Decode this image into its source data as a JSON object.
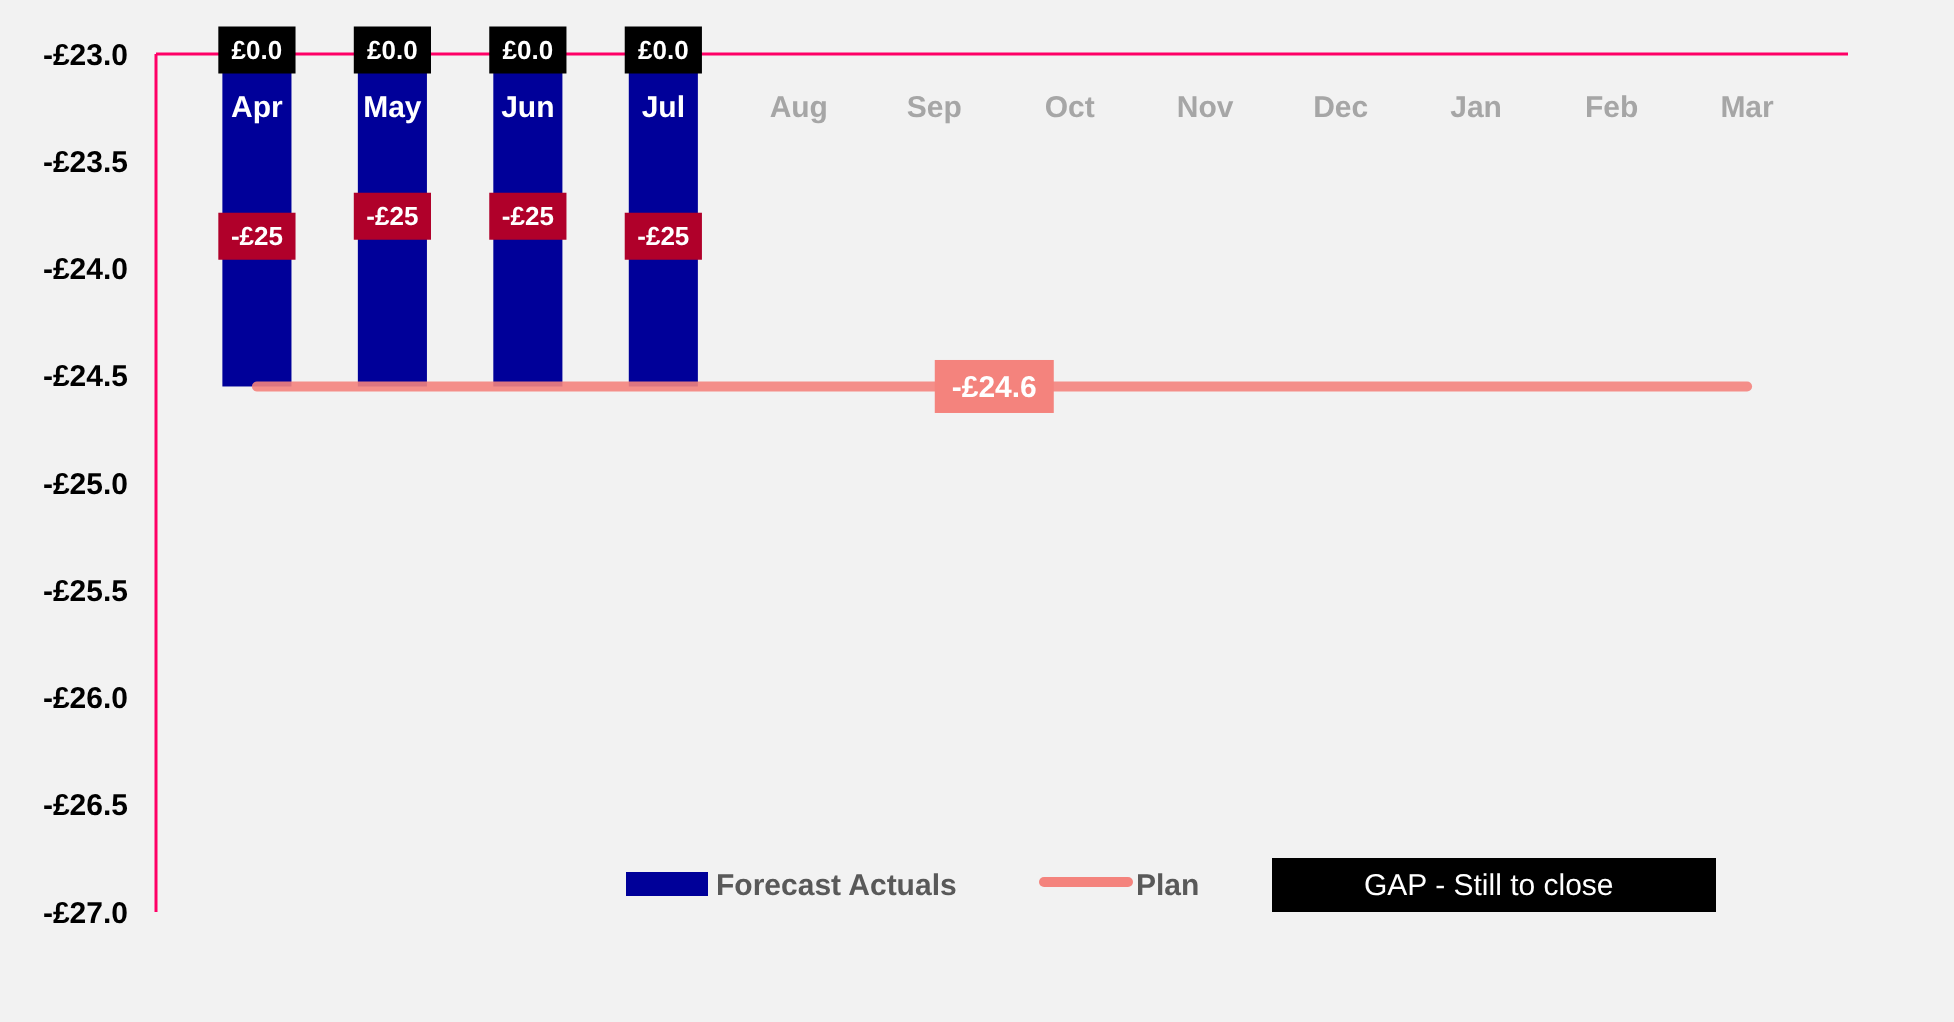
{
  "chart_data": {
    "type": "bar",
    "categories": [
      "Apr",
      "May",
      "Jun",
      "Jul",
      "Aug",
      "Sep",
      "Oct",
      "Nov",
      "Dec",
      "Jan",
      "Feb",
      "Mar"
    ],
    "series": [
      {
        "name": "Forecast Actuals",
        "color": "#000099",
        "values": [
          -24.55,
          -24.55,
          -24.55,
          -24.55,
          null,
          null,
          null,
          null,
          null,
          null,
          null,
          null
        ],
        "value_labels": [
          "-£25",
          "-£25",
          "-£25",
          "-£25",
          null,
          null,
          null,
          null,
          null,
          null,
          null,
          null
        ]
      },
      {
        "name": "Plan",
        "type": "line",
        "color": "#f4837d",
        "values": [
          -24.55,
          -24.55,
          -24.55,
          -24.55,
          -24.55,
          -24.55,
          -24.55,
          -24.55,
          -24.55,
          -24.55,
          -24.55,
          -24.55
        ],
        "value_labels": [
          null,
          null,
          null,
          null,
          null,
          "-£24.6",
          null,
          null,
          null,
          null,
          null,
          null
        ]
      },
      {
        "name": "GAP - Still to close",
        "color": "#000000",
        "values": [
          null,
          null,
          null,
          null,
          null,
          null,
          null,
          null,
          null,
          null,
          null,
          null
        ]
      }
    ],
    "annotations": [
      {
        "text": "£0.0",
        "x": "Apr",
        "y": -23
      },
      {
        "text": "£0.0",
        "x": "May",
        "y": -23
      },
      {
        "text": "£0.0",
        "x": "Jun",
        "y": -23
      },
      {
        "text": "£0.0",
        "x": "Jul",
        "y": -23
      }
    ],
    "ylim": [
      -27,
      -23
    ],
    "yticks": [
      {
        "value": -27,
        "label": "-£27.0"
      },
      {
        "value": -26.5,
        "label": "-£26.5"
      },
      {
        "value": -26,
        "label": "-£26.0"
      },
      {
        "value": -25.5,
        "label": "-£25.5"
      },
      {
        "value": -25,
        "label": "-£25.0"
      },
      {
        "value": -24.5,
        "label": "-£24.5"
      },
      {
        "value": -24,
        "label": "-£24.0"
      },
      {
        "value": -23.5,
        "label": "-£23.5"
      },
      {
        "value": -23,
        "label": "-£23.0"
      }
    ],
    "grid": false,
    "legend": "bottom"
  }
}
